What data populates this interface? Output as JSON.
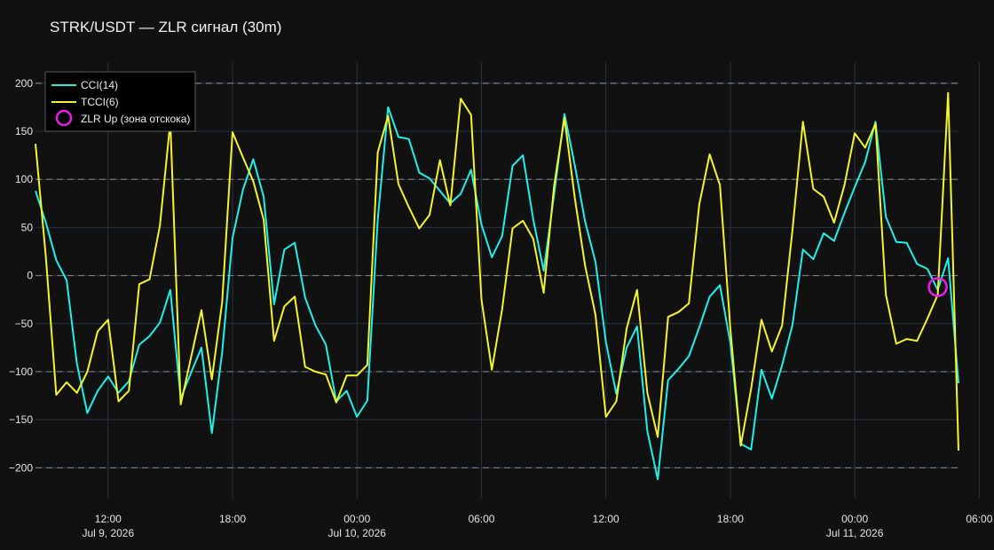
{
  "chart_data": {
    "type": "line",
    "title": "STRK/USDT — ZLR сигнал (30m)",
    "xlabel": "",
    "ylabel": "",
    "x_start": "2026-07-09T08:30",
    "x_interval_minutes": 30,
    "xlim": [
      "2026-07-09T08:30",
      "2026-07-11T05:00"
    ],
    "ylim": [
      -232,
      222
    ],
    "x_ticks": [
      {
        "time": "2026-07-09T12:00",
        "label": "12:00",
        "date": "Jul 9, 2026"
      },
      {
        "time": "2026-07-09T18:00",
        "label": "18:00",
        "date": ""
      },
      {
        "time": "2026-07-10T00:00",
        "label": "00:00",
        "date": "Jul 10, 2026"
      },
      {
        "time": "2026-07-10T06:00",
        "label": "06:00",
        "date": ""
      },
      {
        "time": "2026-07-10T12:00",
        "label": "12:00",
        "date": ""
      },
      {
        "time": "2026-07-10T18:00",
        "label": "18:00",
        "date": ""
      },
      {
        "time": "2026-07-11T00:00",
        "label": "00:00",
        "date": "Jul 11, 2026"
      },
      {
        "time": "2026-07-11T06:00",
        "label": "06:00",
        "date": ""
      }
    ],
    "y_ticks": [
      200,
      150,
      100,
      50,
      0,
      -50,
      -100,
      -150,
      -200
    ],
    "y_tick_labels": [
      "200",
      "150",
      "100",
      "50",
      "0",
      "−50",
      "−100",
      "−150",
      "−200"
    ],
    "reference_lines": [
      200,
      100,
      0,
      -100,
      -200
    ],
    "grid": true,
    "legend_position": "top-left",
    "series": [
      {
        "name": "CCI(14)",
        "color": "#1ef0ea",
        "values": [
          88,
          55,
          16,
          -5,
          -92,
          -143,
          -120,
          -105,
          -122,
          -110,
          -72,
          -63,
          -49,
          -15,
          -128,
          -101,
          -75,
          -164,
          -80,
          39,
          89,
          121,
          82,
          -30,
          27,
          34,
          -23,
          -52,
          -72,
          -131,
          -120,
          -147,
          -130,
          58,
          175,
          144,
          142,
          107,
          101,
          88,
          75,
          85,
          110,
          53,
          19,
          41,
          114,
          125,
          58,
          5,
          84,
          168,
          115,
          56,
          14,
          -69,
          -123,
          -75,
          -53,
          -162,
          -212,
          -109,
          -97,
          -84,
          -54,
          -22,
          -10,
          -70,
          -175,
          -181,
          -98,
          -128,
          -93,
          -51,
          27,
          17,
          44,
          36,
          65,
          92,
          118,
          160,
          61,
          35,
          34,
          12,
          7,
          -15,
          18,
          -112
        ]
      },
      {
        "name": "TCCI(6)",
        "color": "#f5f52a",
        "values": [
          137,
          19,
          -124,
          -111,
          -122,
          -100,
          -58,
          -46,
          -131,
          -120,
          -9,
          -4,
          52,
          160,
          -134,
          -85,
          -36,
          -108,
          -28,
          149,
          123,
          98,
          58,
          -68,
          -32,
          -22,
          -95,
          -100,
          -103,
          -132,
          -104,
          -104,
          -93,
          128,
          166,
          95,
          71,
          49,
          63,
          120,
          73,
          184,
          167,
          -25,
          -98,
          -35,
          49,
          57,
          38,
          -18,
          93,
          164,
          81,
          10,
          -41,
          -147,
          -131,
          -55,
          -15,
          -122,
          -168,
          -43,
          -38,
          -29,
          74,
          126,
          94,
          -55,
          -177,
          -118,
          -46,
          -79,
          -52,
          48,
          160,
          90,
          82,
          55,
          94,
          148,
          133,
          158,
          -20,
          -71,
          -66,
          -68,
          -45,
          -20,
          190,
          -182
        ]
      }
    ],
    "markers": [
      {
        "name": "ZLR Up (зона отскока)",
        "time": "2026-07-11T04:00",
        "value": -12,
        "color": "#e81ee8"
      }
    ],
    "legend": [
      "CCI(14)",
      "TCCI(6)",
      "ZLR Up (зона отскока)"
    ]
  }
}
